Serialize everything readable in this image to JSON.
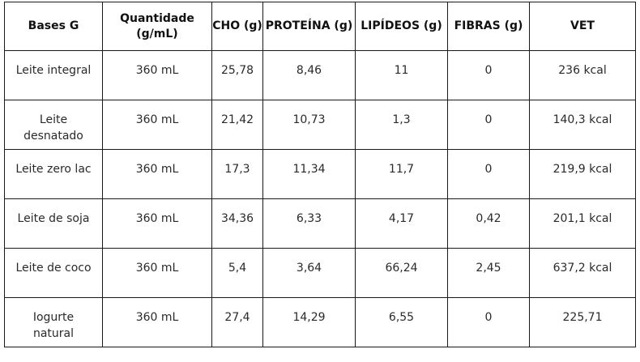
{
  "table": {
    "headers": [
      "Bases G",
      "Quantidade (g/mL)",
      "CHO (g)",
      "PROTEÍNA (g)",
      "LIPÍDEOS (g)",
      "FIBRAS (g)",
      "VET"
    ],
    "rows": [
      [
        "Leite integral",
        "360 mL",
        "25,78",
        "8,46",
        "11",
        "0",
        "236 kcal"
      ],
      [
        "Leite desnatado",
        "360 mL",
        "21,42",
        "10,73",
        "1,3",
        "0",
        "140,3 kcal"
      ],
      [
        "Leite zero lac",
        "360 mL",
        "17,3",
        "11,34",
        "11,7",
        "0",
        "219,9 kcal"
      ],
      [
        "Leite de soja",
        "360 mL",
        "34,36",
        "6,33",
        "4,17",
        "0,42",
        "201,1 kcal"
      ],
      [
        "Leite de coco",
        "360 mL",
        "5,4",
        "3,64",
        "66,24",
        "2,45",
        "637,2 kcal"
      ],
      [
        "Iogurte natural",
        "360 mL",
        "27,4",
        "14,29",
        "6,55",
        "0",
        "225,71"
      ]
    ]
  }
}
